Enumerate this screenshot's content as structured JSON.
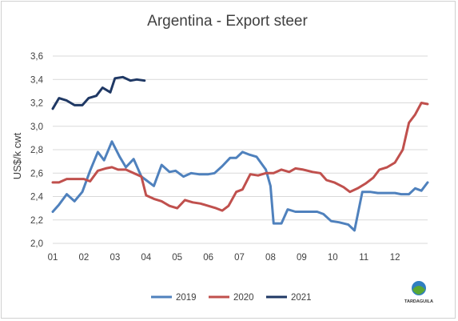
{
  "chart_data": {
    "type": "line",
    "title": "Argentina - Export steer",
    "ylabel": "US$/k cwt",
    "xlabel": "",
    "ylim": [
      2.0,
      3.6
    ],
    "yticks": [
      "2,0",
      "2,2",
      "2,4",
      "2,6",
      "2,8",
      "3,0",
      "3,2",
      "3,4",
      "3,6"
    ],
    "ytick_values": [
      2.0,
      2.2,
      2.4,
      2.6,
      2.8,
      3.0,
      3.2,
      3.4,
      3.6
    ],
    "xticks": [
      "01",
      "02",
      "03",
      "04",
      "05",
      "06",
      "07",
      "08",
      "09",
      "10",
      "11",
      "12"
    ],
    "grid": true,
    "legend_position": "bottom",
    "series": [
      {
        "name": "2019",
        "color": "#4f81bd",
        "points": [
          [
            1.0,
            2.27
          ],
          [
            1.2,
            2.33
          ],
          [
            1.45,
            2.42
          ],
          [
            1.7,
            2.36
          ],
          [
            1.95,
            2.44
          ],
          [
            2.2,
            2.62
          ],
          [
            2.45,
            2.78
          ],
          [
            2.65,
            2.71
          ],
          [
            2.9,
            2.87
          ],
          [
            3.15,
            2.74
          ],
          [
            3.35,
            2.65
          ],
          [
            3.6,
            2.72
          ],
          [
            3.85,
            2.57
          ],
          [
            4.0,
            2.54
          ],
          [
            4.25,
            2.49
          ],
          [
            4.5,
            2.67
          ],
          [
            4.75,
            2.61
          ],
          [
            4.95,
            2.62
          ],
          [
            5.2,
            2.57
          ],
          [
            5.45,
            2.6
          ],
          [
            5.7,
            2.59
          ],
          [
            6.0,
            2.59
          ],
          [
            6.2,
            2.6
          ],
          [
            6.45,
            2.66
          ],
          [
            6.7,
            2.73
          ],
          [
            6.9,
            2.73
          ],
          [
            7.1,
            2.78
          ],
          [
            7.3,
            2.76
          ],
          [
            7.55,
            2.74
          ],
          [
            7.85,
            2.63
          ],
          [
            8.0,
            2.49
          ],
          [
            8.1,
            2.17
          ],
          [
            8.35,
            2.17
          ],
          [
            8.55,
            2.29
          ],
          [
            8.8,
            2.27
          ],
          [
            9.0,
            2.27
          ],
          [
            9.3,
            2.27
          ],
          [
            9.5,
            2.27
          ],
          [
            9.7,
            2.25
          ],
          [
            9.95,
            2.19
          ],
          [
            10.2,
            2.18
          ],
          [
            10.5,
            2.16
          ],
          [
            10.7,
            2.11
          ],
          [
            10.95,
            2.44
          ],
          [
            11.2,
            2.44
          ],
          [
            11.45,
            2.43
          ],
          [
            11.7,
            2.43
          ],
          [
            12.0,
            2.43
          ],
          [
            12.2,
            2.42
          ],
          [
            12.45,
            2.42
          ],
          [
            12.65,
            2.47
          ],
          [
            12.85,
            2.45
          ],
          [
            13.05,
            2.52
          ]
        ]
      },
      {
        "name": "2020",
        "color": "#c0504d",
        "points": [
          [
            1.0,
            2.52
          ],
          [
            1.2,
            2.52
          ],
          [
            1.45,
            2.55
          ],
          [
            1.7,
            2.55
          ],
          [
            2.0,
            2.55
          ],
          [
            2.2,
            2.53
          ],
          [
            2.45,
            2.62
          ],
          [
            2.7,
            2.64
          ],
          [
            2.9,
            2.65
          ],
          [
            3.1,
            2.63
          ],
          [
            3.35,
            2.63
          ],
          [
            3.6,
            2.6
          ],
          [
            3.85,
            2.57
          ],
          [
            4.0,
            2.41
          ],
          [
            4.25,
            2.38
          ],
          [
            4.5,
            2.36
          ],
          [
            4.75,
            2.32
          ],
          [
            5.0,
            2.3
          ],
          [
            5.25,
            2.37
          ],
          [
            5.5,
            2.35
          ],
          [
            5.75,
            2.34
          ],
          [
            6.0,
            2.32
          ],
          [
            6.25,
            2.3
          ],
          [
            6.45,
            2.28
          ],
          [
            6.65,
            2.32
          ],
          [
            6.9,
            2.44
          ],
          [
            7.1,
            2.46
          ],
          [
            7.35,
            2.59
          ],
          [
            7.6,
            2.58
          ],
          [
            7.85,
            2.6
          ],
          [
            8.1,
            2.6
          ],
          [
            8.35,
            2.63
          ],
          [
            8.6,
            2.61
          ],
          [
            8.8,
            2.64
          ],
          [
            9.05,
            2.63
          ],
          [
            9.35,
            2.61
          ],
          [
            9.6,
            2.6
          ],
          [
            9.8,
            2.54
          ],
          [
            10.05,
            2.52
          ],
          [
            10.35,
            2.48
          ],
          [
            10.55,
            2.44
          ],
          [
            10.8,
            2.47
          ],
          [
            11.05,
            2.51
          ],
          [
            11.3,
            2.56
          ],
          [
            11.5,
            2.63
          ],
          [
            11.75,
            2.65
          ],
          [
            12.0,
            2.69
          ],
          [
            12.25,
            2.8
          ],
          [
            12.45,
            3.03
          ],
          [
            12.65,
            3.1
          ],
          [
            12.85,
            3.2
          ],
          [
            13.05,
            3.19
          ]
        ]
      },
      {
        "name": "2021",
        "color": "#1f3864",
        "points": [
          [
            1.0,
            3.15
          ],
          [
            1.2,
            3.24
          ],
          [
            1.45,
            3.22
          ],
          [
            1.7,
            3.18
          ],
          [
            1.95,
            3.18
          ],
          [
            2.15,
            3.24
          ],
          [
            2.4,
            3.26
          ],
          [
            2.6,
            3.33
          ],
          [
            2.85,
            3.29
          ],
          [
            3.0,
            3.41
          ],
          [
            3.25,
            3.42
          ],
          [
            3.5,
            3.39
          ],
          [
            3.7,
            3.4
          ],
          [
            3.95,
            3.39
          ]
        ]
      }
    ]
  },
  "logo": {
    "text": "TARDAGUILA"
  }
}
